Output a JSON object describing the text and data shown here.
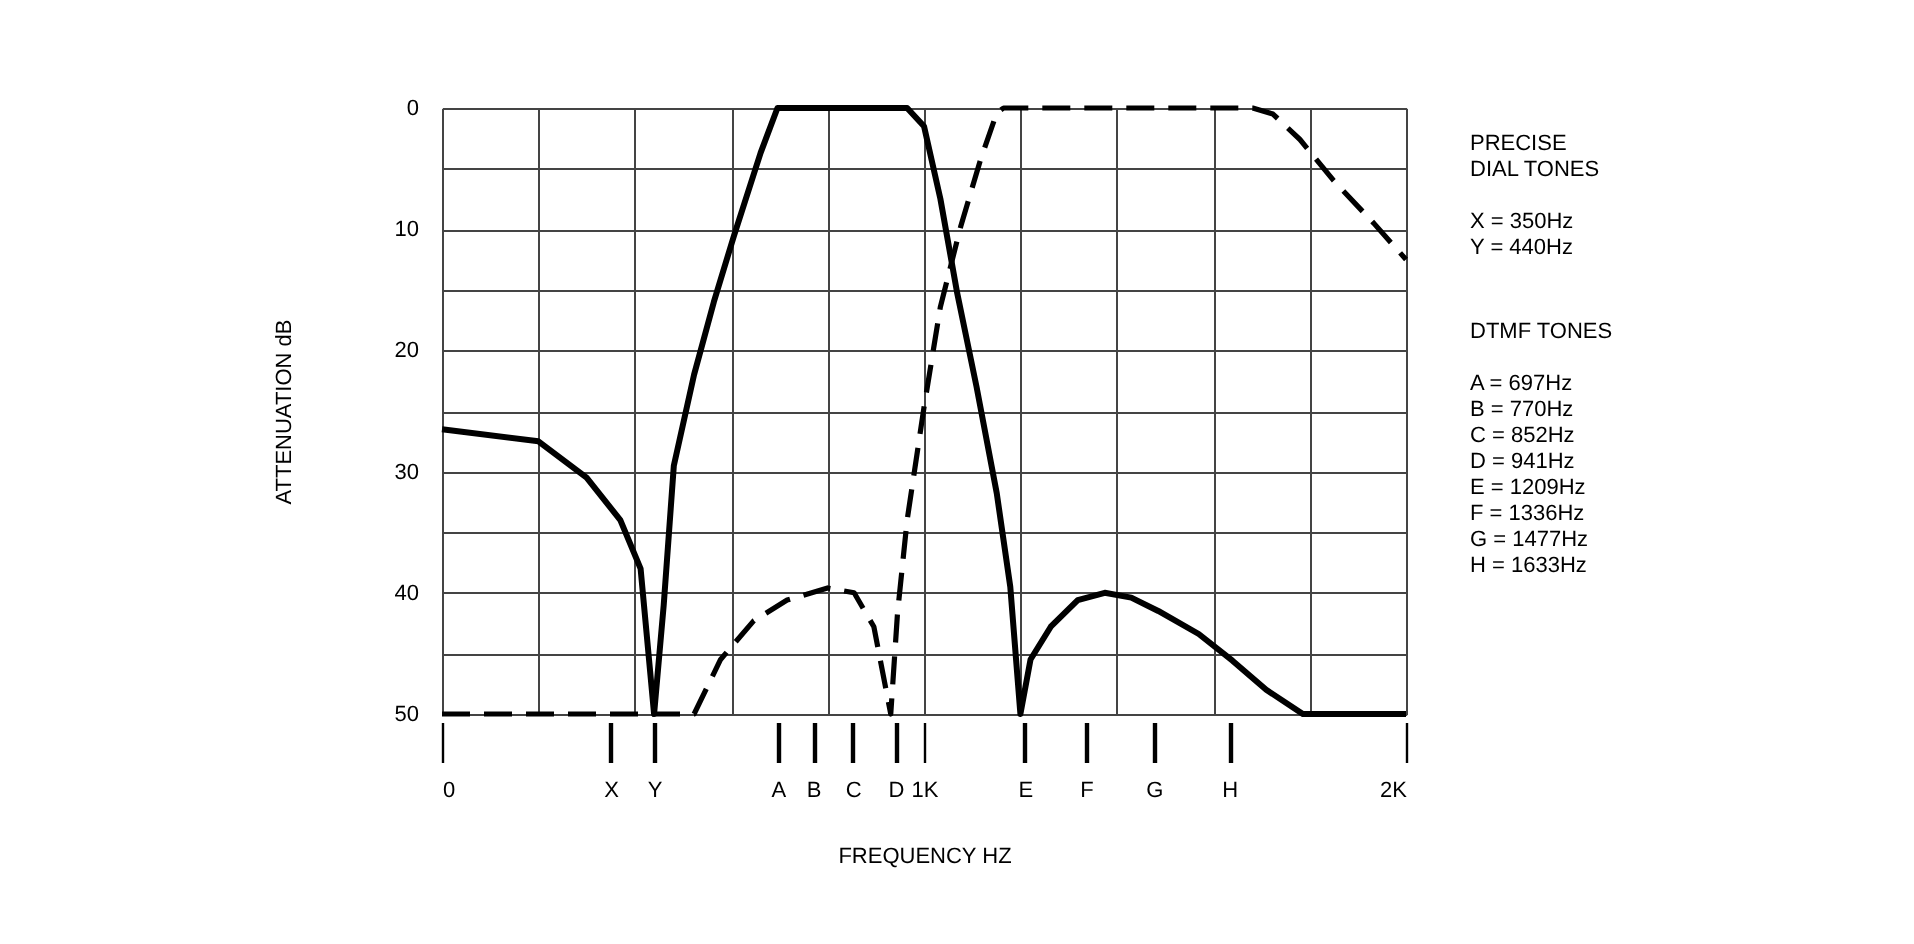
{
  "chart_data": {
    "type": "line",
    "xlabel": "FREQUENCY HZ",
    "ylabel": "ATTENUATION dB",
    "xlim": [
      0,
      2000
    ],
    "ylim": [
      50,
      0
    ],
    "xticks": [
      0,
      {
        "value": 200,
        "label": null
      },
      {
        "value": 350,
        "label": "X"
      },
      {
        "value": 400,
        "label": null
      },
      {
        "value": 440,
        "label": "Y"
      },
      {
        "value": 600,
        "label": null
      },
      {
        "value": 697,
        "label": "A"
      },
      {
        "value": 770,
        "label": "B"
      },
      {
        "value": 800,
        "label": null
      },
      {
        "value": 852,
        "label": "C"
      },
      {
        "value": 941,
        "label": "D"
      },
      {
        "value": 1000,
        "label": "1K"
      },
      {
        "value": 1200,
        "label": null
      },
      {
        "value": 1209,
        "label": "E"
      },
      {
        "value": 1336,
        "label": "F"
      },
      {
        "value": 1400,
        "label": null
      },
      {
        "value": 1477,
        "label": "G"
      },
      {
        "value": 1600,
        "label": null
      },
      {
        "value": 1633,
        "label": "H"
      },
      {
        "value": 1800,
        "label": null
      },
      {
        "value": 2000,
        "label": "2K"
      }
    ],
    "yticks": [
      0,
      {
        "value": 5,
        "label": null
      },
      10,
      {
        "value": 15,
        "label": null
      },
      20,
      {
        "value": 25,
        "label": null
      },
      30,
      {
        "value": 35,
        "label": null
      },
      40,
      {
        "value": 45,
        "label": null
      },
      50
    ],
    "grid": true,
    "marker": "none",
    "series": [
      {
        "color": "#000000",
        "line_style": "solid",
        "x": [
          0,
          200,
          300,
          370,
          412,
          440,
          460,
          481,
          523,
          564,
          606,
          661,
          696,
          965,
          1000,
          1034,
          1069,
          1109,
          1151,
          1179,
          1200,
          1221,
          1263,
          1319,
          1375,
          1430,
          1486,
          1570,
          1640,
          1710,
          1786,
          2000
        ],
        "values": [
          26.5,
          27.5,
          30.5,
          34,
          38,
          50,
          41,
          29.5,
          22,
          16,
          10.5,
          3.7,
          0,
          0,
          1.5,
          7.5,
          15.3,
          23,
          31.8,
          39.5,
          50,
          45.5,
          42.8,
          40.6,
          40,
          40.4,
          41.5,
          43.4,
          45.6,
          48,
          50,
          50
        ]
      },
      {
        "color": "#000000",
        "line_style": "dashed",
        "x": [
          0,
          523,
          578,
          647,
          716,
          800,
          855,
          896,
          931,
          945,
          965,
          1000,
          1034,
          1076,
          1117,
          1151,
          1165,
          1682,
          1724,
          1780,
          1850,
          1933,
          2000
        ],
        "values": [
          50,
          50,
          45.5,
          42.3,
          40.6,
          39.6,
          40,
          42.8,
          50,
          41.7,
          34,
          24.7,
          16.4,
          9.8,
          4.3,
          0.4,
          0,
          0,
          0.5,
          2.6,
          6,
          9.5,
          12.5
        ]
      }
    ],
    "annotations": [
      "PRECISE\nDIAL TONES",
      "X = 350Hz",
      "Y = 440Hz",
      "DTMF TONES",
      "A = 697Hz",
      "B = 770Hz",
      "C = 852Hz",
      "D = 941Hz",
      "E = 1209Hz",
      "F = 1336Hz",
      "G = 1477Hz",
      "H = 1633Hz"
    ]
  }
}
